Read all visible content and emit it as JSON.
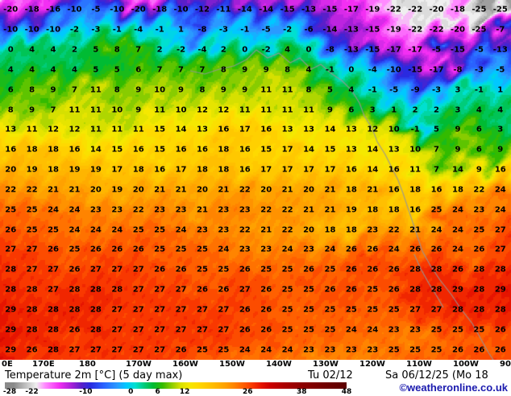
{
  "chart_data": {
    "type": "heatmap",
    "title": "Temperature 2m [°C] (5 day max)",
    "unit": "°C",
    "x_tick_labels": [
      "0E",
      "170E",
      "180",
      "170W",
      "160W",
      "150W",
      "140W",
      "130W",
      "120W",
      "110W",
      "100W",
      "90"
    ],
    "legend_ticks": [
      -28,
      -22,
      -10,
      0,
      6,
      12,
      26,
      38,
      48
    ],
    "legend_range": [
      -28,
      48
    ],
    "colormap": [
      [
        -30,
        "#4a4a4a"
      ],
      [
        -26,
        "#8a8a8a"
      ],
      [
        -23,
        "#c8c8c8"
      ],
      [
        -21,
        "#efefef"
      ],
      [
        -19,
        "#ff8aff"
      ],
      [
        -16,
        "#f32ff3"
      ],
      [
        -13,
        "#a21fd6"
      ],
      [
        -11,
        "#5a1fc8"
      ],
      [
        -9,
        "#2a2ae0"
      ],
      [
        -6,
        "#2a62ff"
      ],
      [
        -3,
        "#2a9aff"
      ],
      [
        -1,
        "#00c8ff"
      ],
      [
        1,
        "#00e0d0"
      ],
      [
        3,
        "#00cc7a"
      ],
      [
        5,
        "#00bb33"
      ],
      [
        7,
        "#33bb00"
      ],
      [
        9,
        "#88cc00"
      ],
      [
        11,
        "#d6e000"
      ],
      [
        13,
        "#f5e800"
      ],
      [
        15,
        "#ffd900"
      ],
      [
        18,
        "#ffbf00"
      ],
      [
        21,
        "#ffa100"
      ],
      [
        23,
        "#ff8400"
      ],
      [
        25,
        "#ff6000"
      ],
      [
        27,
        "#f93800"
      ],
      [
        29,
        "#e61400"
      ],
      [
        31,
        "#cc0000"
      ],
      [
        34,
        "#ad0000"
      ],
      [
        38,
        "#8f0000"
      ],
      [
        43,
        "#730000"
      ],
      [
        48,
        "#5c0000"
      ]
    ],
    "grid": [
      [
        -20,
        -18,
        -16,
        -10,
        -5,
        -10,
        -20,
        -18,
        -10,
        -12,
        -11,
        -14,
        -14,
        -15,
        -13,
        -15,
        -17,
        -19,
        -22,
        -22,
        -20,
        -18,
        -25,
        -25
      ],
      [
        -10,
        -10,
        -10,
        -2,
        -3,
        -1,
        -4,
        -1,
        1,
        -8,
        -3,
        -1,
        -5,
        -2,
        -6,
        -14,
        -13,
        -15,
        -19,
        -22,
        -22,
        -20,
        -25,
        -7
      ],
      [
        0,
        4,
        4,
        2,
        5,
        8,
        7,
        2,
        -2,
        -4,
        2,
        0,
        -2,
        4,
        0,
        -8,
        -13,
        -15,
        -17,
        -17,
        -5,
        -15,
        -5,
        -13
      ],
      [
        4,
        4,
        4,
        4,
        5,
        5,
        6,
        7,
        7,
        7,
        8,
        9,
        9,
        8,
        4,
        -1,
        0,
        -4,
        -10,
        -15,
        -17,
        -8,
        -3,
        -5
      ],
      [
        6,
        8,
        9,
        7,
        11,
        8,
        9,
        10,
        9,
        8,
        9,
        9,
        11,
        11,
        8,
        5,
        4,
        -1,
        -5,
        -9,
        -3,
        3,
        -1,
        1
      ],
      [
        8,
        9,
        7,
        11,
        11,
        10,
        9,
        11,
        10,
        12,
        12,
        11,
        11,
        11,
        11,
        9,
        6,
        3,
        1,
        2,
        2,
        3,
        4,
        4
      ],
      [
        13,
        11,
        12,
        12,
        11,
        11,
        11,
        15,
        14,
        13,
        16,
        17,
        16,
        13,
        13,
        14,
        13,
        12,
        10,
        -1,
        5,
        9,
        6,
        3
      ],
      [
        16,
        18,
        18,
        16,
        14,
        15,
        16,
        15,
        16,
        16,
        18,
        16,
        15,
        17,
        14,
        15,
        13,
        14,
        13,
        10,
        7,
        9,
        6,
        9
      ],
      [
        20,
        19,
        18,
        19,
        19,
        17,
        18,
        16,
        17,
        18,
        18,
        16,
        17,
        17,
        17,
        17,
        16,
        14,
        16,
        11,
        7,
        14,
        9,
        16
      ],
      [
        22,
        22,
        21,
        21,
        20,
        19,
        20,
        21,
        21,
        20,
        21,
        22,
        20,
        21,
        20,
        21,
        18,
        21,
        16,
        18,
        16,
        18,
        22,
        24
      ],
      [
        25,
        25,
        24,
        24,
        23,
        23,
        22,
        23,
        23,
        21,
        23,
        23,
        22,
        22,
        21,
        21,
        19,
        18,
        18,
        16,
        25,
        24,
        23,
        24
      ],
      [
        26,
        25,
        25,
        24,
        24,
        24,
        25,
        25,
        24,
        23,
        23,
        22,
        21,
        22,
        20,
        18,
        18,
        23,
        22,
        21,
        24,
        24,
        25,
        27
      ],
      [
        27,
        27,
        26,
        25,
        26,
        26,
        26,
        25,
        25,
        25,
        24,
        23,
        23,
        24,
        23,
        24,
        26,
        26,
        24,
        26,
        26,
        24,
        26,
        27
      ],
      [
        28,
        27,
        27,
        26,
        27,
        27,
        27,
        26,
        26,
        25,
        25,
        26,
        25,
        25,
        26,
        25,
        26,
        26,
        26,
        28,
        28,
        26,
        28,
        28
      ],
      [
        28,
        28,
        27,
        28,
        28,
        28,
        27,
        27,
        27,
        26,
        26,
        27,
        26,
        25,
        25,
        26,
        26,
        25,
        26,
        28,
        28,
        29,
        28,
        29
      ],
      [
        29,
        28,
        28,
        28,
        28,
        27,
        27,
        27,
        27,
        27,
        27,
        26,
        26,
        25,
        25,
        25,
        25,
        25,
        25,
        27,
        27,
        28,
        28,
        28
      ],
      [
        29,
        28,
        28,
        26,
        28,
        27,
        27,
        27,
        27,
        27,
        27,
        26,
        26,
        25,
        25,
        25,
        24,
        24,
        23,
        23,
        25,
        25,
        25,
        26
      ],
      [
        29,
        26,
        28,
        27,
        27,
        27,
        27,
        27,
        26,
        25,
        25,
        24,
        24,
        24,
        23,
        23,
        23,
        23,
        25,
        25,
        25,
        26,
        26,
        26
      ]
    ]
  },
  "footer": {
    "valid_from": "Tu 02/12",
    "valid_to": "Sa 06/12/25 (Mo 18",
    "copyright": "©weatheronline.co.uk"
  }
}
